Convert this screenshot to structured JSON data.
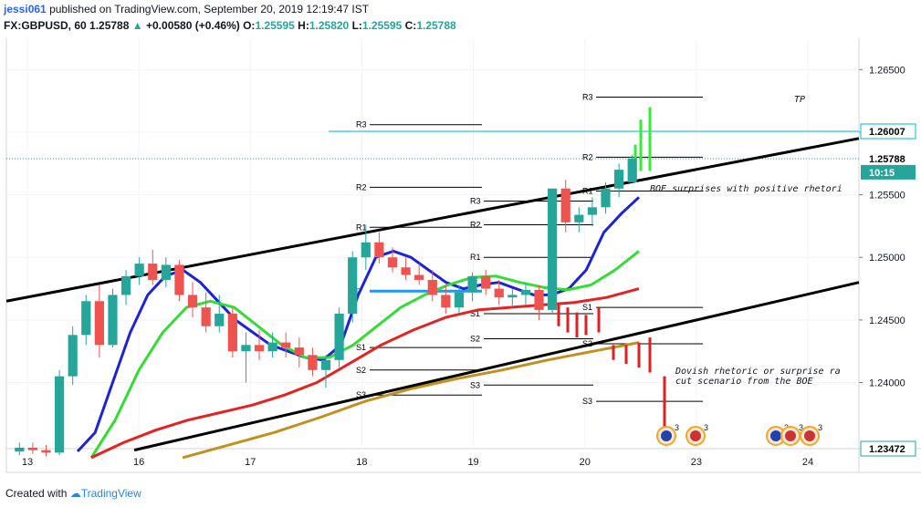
{
  "header": {
    "author": "jessi061",
    "published_text": "published on TradingView.com, September 20, 2019 12:19:47 IST",
    "symbol": "FX:GBPUSD, 60",
    "last": "1.25788",
    "change_arrow": "▲",
    "change": "+0.00580 (+0.46%)",
    "o_label": "O:",
    "o_value": "1.25595",
    "h_label": "H:",
    "h_value": "1.25820",
    "l_label": "L:",
    "l_value": "1.25595",
    "c_label": "C:",
    "c_value": "1.25788"
  },
  "footer": {
    "created_with": "Created with",
    "brand": "TradingView"
  },
  "colors": {
    "up": "#26a69a",
    "down": "#ef5350",
    "ema_fast": "#1e22d8",
    "ema_mid": "#33dd33",
    "ema_slow": "#e52222",
    "sma_long": "#c09020",
    "channel": "#000000",
    "tp_line": "#00bcd4",
    "pivot": "#2196f3",
    "bull_proj": "#33ee33",
    "bear_proj": "#e02020"
  },
  "chart_data": {
    "type": "candlestick",
    "symbol": "FX:GBPUSD",
    "interval": "60",
    "ylim": [
      1.23472,
      1.2675
    ],
    "y_ticks": [
      "1.26500",
      "1.26000",
      "1.25500",
      "1.25000",
      "1.24500",
      "1.24000"
    ],
    "y_tick_values": [
      1.265,
      1.26,
      1.255,
      1.25,
      1.245,
      1.24
    ],
    "x_ticks": [
      "13",
      "16",
      "17",
      "18",
      "19",
      "20",
      "23",
      "24"
    ],
    "price_badges": [
      {
        "label": "1.26007",
        "value": 1.26007,
        "style": "tp"
      },
      {
        "label": "1.25788",
        "value": 1.25788,
        "style": "last"
      },
      {
        "label": "10:15",
        "value": 1.2568,
        "style": "countdown"
      },
      {
        "label": "1.23472",
        "value": 1.23472,
        "style": "low"
      }
    ],
    "candles_ohlc": [
      [
        1.2345,
        1.2352,
        1.2342,
        1.2348
      ],
      [
        1.2348,
        1.2352,
        1.2343,
        1.2346
      ],
      [
        1.2346,
        1.235,
        1.2341,
        1.2344
      ],
      [
        1.2344,
        1.241,
        1.2342,
        1.2405
      ],
      [
        1.2405,
        1.2445,
        1.2398,
        1.2438
      ],
      [
        1.2438,
        1.247,
        1.243,
        1.2465
      ],
      [
        1.2465,
        1.2478,
        1.242,
        1.243
      ],
      [
        1.243,
        1.2475,
        1.2428,
        1.247
      ],
      [
        1.247,
        1.249,
        1.2462,
        1.2485
      ],
      [
        1.2485,
        1.25,
        1.2478,
        1.2495
      ],
      [
        1.2495,
        1.2506,
        1.2478,
        1.2482
      ],
      [
        1.2482,
        1.25,
        1.2476,
        1.2494
      ],
      [
        1.2494,
        1.2498,
        1.2465,
        1.247
      ],
      [
        1.247,
        1.248,
        1.2452,
        1.246
      ],
      [
        1.246,
        1.2472,
        1.244,
        1.2445
      ],
      [
        1.2445,
        1.247,
        1.244,
        1.2455
      ],
      [
        1.2455,
        1.246,
        1.242,
        1.2425
      ],
      [
        1.2425,
        1.244,
        1.24,
        1.243
      ],
      [
        1.243,
        1.2442,
        1.2418,
        1.2425
      ],
      [
        1.2425,
        1.244,
        1.242,
        1.2432
      ],
      [
        1.2432,
        1.244,
        1.242,
        1.2428
      ],
      [
        1.2428,
        1.2436,
        1.2412,
        1.2422
      ],
      [
        1.2422,
        1.2428,
        1.2405,
        1.241
      ],
      [
        1.241,
        1.2422,
        1.2396,
        1.2418
      ],
      [
        1.2418,
        1.246,
        1.2412,
        1.2455
      ],
      [
        1.2455,
        1.2505,
        1.2448,
        1.25
      ],
      [
        1.25,
        1.2526,
        1.249,
        1.2512
      ],
      [
        1.2512,
        1.252,
        1.2495,
        1.25
      ],
      [
        1.25,
        1.2508,
        1.2488,
        1.2492
      ],
      [
        1.2492,
        1.25,
        1.2482,
        1.2486
      ],
      [
        1.2486,
        1.2495,
        1.2478,
        1.2482
      ],
      [
        1.2482,
        1.249,
        1.2465,
        1.247
      ],
      [
        1.247,
        1.2478,
        1.2455,
        1.246
      ],
      [
        1.246,
        1.2478,
        1.2455,
        1.2472
      ],
      [
        1.2472,
        1.2488,
        1.2465,
        1.2485
      ],
      [
        1.2485,
        1.249,
        1.247,
        1.2475
      ],
      [
        1.2475,
        1.2482,
        1.2462,
        1.2468
      ],
      [
        1.2468,
        1.2475,
        1.246,
        1.247
      ],
      [
        1.247,
        1.248,
        1.2462,
        1.2474
      ],
      [
        1.2474,
        1.2478,
        1.245,
        1.2458
      ],
      [
        1.2458,
        1.252,
        1.2455,
        1.2555
      ],
      [
        1.2555,
        1.2562,
        1.252,
        1.2528
      ],
      [
        1.2528,
        1.254,
        1.252,
        1.2534
      ],
      [
        1.2534,
        1.2548,
        1.2525,
        1.254
      ],
      [
        1.254,
        1.256,
        1.2535,
        1.2555
      ],
      [
        1.2555,
        1.2575,
        1.2548,
        1.257
      ],
      [
        1.256,
        1.2582,
        1.256,
        1.2579
      ]
    ],
    "ma_series": [
      {
        "key": "ema_fast",
        "values": [
          1.2345,
          1.236,
          1.24,
          1.244,
          1.247,
          1.2485,
          1.249,
          1.248,
          1.2465,
          1.245,
          1.244,
          1.243,
          1.2425,
          1.242,
          1.2418,
          1.243,
          1.247,
          1.25,
          1.2505,
          1.25,
          1.249,
          1.248,
          1.2475,
          1.2478,
          1.248,
          1.2475,
          1.247,
          1.247,
          1.2475,
          1.249,
          1.252,
          1.2535,
          1.2548
        ]
      },
      {
        "key": "ema_mid",
        "values": [
          1.234,
          1.237,
          1.241,
          1.244,
          1.246,
          1.2465,
          1.246,
          1.2445,
          1.243,
          1.242,
          1.242,
          1.243,
          1.2445,
          1.246,
          1.247,
          1.2478,
          1.2484,
          1.2485,
          1.248,
          1.2476,
          1.2474,
          1.2478,
          1.249,
          1.2505
        ]
      },
      {
        "key": "ema_slow",
        "values": [
          1.234,
          1.2352,
          1.2362,
          1.237,
          1.2376,
          1.2382,
          1.239,
          1.24,
          1.2415,
          1.243,
          1.2442,
          1.2452,
          1.2458,
          1.246,
          1.2462,
          1.2464,
          1.2468,
          1.2475
        ]
      },
      {
        "key": "sma_long",
        "values": [
          1.234,
          1.235,
          1.236,
          1.2372,
          1.2385,
          1.2395,
          1.2403,
          1.241,
          1.2418,
          1.2425,
          1.2432
        ]
      }
    ],
    "channel_lines": [
      {
        "from": [
          0,
          1.2465
        ],
        "to": [
          1.0,
          1.2595
        ]
      },
      {
        "from": [
          0.15,
          1.2346
        ],
        "to": [
          1.0,
          1.248
        ]
      }
    ],
    "pivot_levels": [
      {
        "label": "R3",
        "value": 1.2606
      },
      {
        "label": "R2",
        "value": 1.2556
      },
      {
        "label": "R1",
        "value": 1.2524
      },
      {
        "label": "P",
        "value": 1.2473
      },
      {
        "label": "S1",
        "value": 1.2428
      },
      {
        "label": "S2",
        "value": 1.241
      },
      {
        "label": "S3",
        "value": 1.239
      },
      {
        "label": "R2",
        "value": 1.2526
      },
      {
        "label": "R3",
        "value": 1.2545
      },
      {
        "label": "R1",
        "value": 1.25
      },
      {
        "label": "S1",
        "value": 1.2455
      },
      {
        "label": "S2",
        "value": 1.2435
      },
      {
        "label": "S3",
        "value": 1.2398
      },
      {
        "label": "R3",
        "value": 1.2628
      },
      {
        "label": "R2",
        "value": 1.258
      },
      {
        "label": "R1",
        "value": 1.2553
      },
      {
        "label": "S1",
        "value": 1.246
      },
      {
        "label": "S2",
        "value": 1.2431
      },
      {
        "label": "S3",
        "value": 1.2385
      }
    ],
    "tp_level": {
      "value": 1.26007,
      "label": "TP"
    },
    "annotations": [
      "BOE surprises with positive rhetori",
      "Dovish rhetoric or surprise ra",
      "cut scenario from the BOE"
    ],
    "event_badge": "3"
  }
}
